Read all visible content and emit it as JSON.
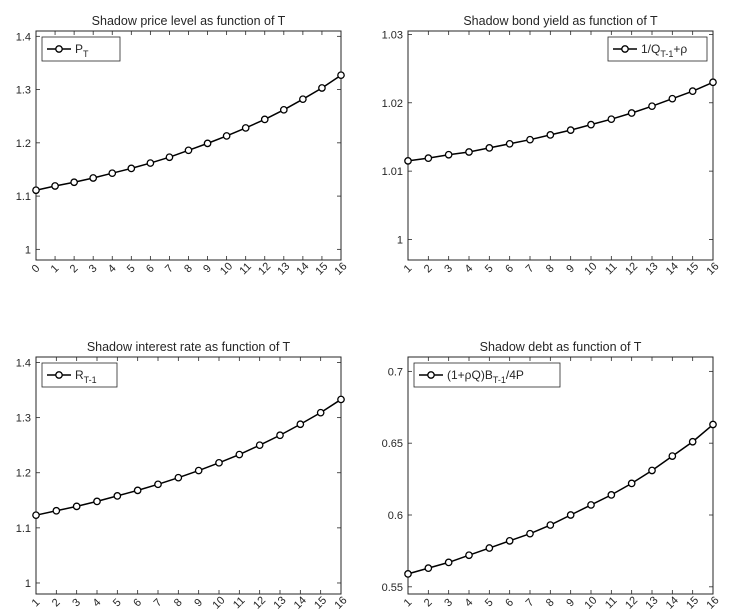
{
  "chart_data": [
    {
      "type": "line",
      "title": "Shadow price level as function of T",
      "x": [
        0,
        1,
        2,
        3,
        4,
        5,
        6,
        7,
        8,
        9,
        10,
        11,
        12,
        13,
        14,
        15,
        16
      ],
      "x_tick_labels": [
        "0",
        "1",
        "2",
        "3",
        "4",
        "5",
        "6",
        "7",
        "8",
        "9",
        "10",
        "11",
        "12",
        "13",
        "14",
        "15",
        "16"
      ],
      "xlim": [
        0,
        16
      ],
      "ylim": [
        0.98,
        1.41
      ],
      "yticks": [
        1,
        1.1,
        1.2,
        1.3,
        1.4
      ],
      "ytick_labels": [
        "1",
        "1.1",
        "1.2",
        "1.3",
        "1.4"
      ],
      "legend": {
        "main": "P",
        "sub": "T",
        "suffix": "",
        "position": "top-left"
      },
      "series": [
        {
          "values": [
            1.111,
            1.119,
            1.126,
            1.134,
            1.143,
            1.152,
            1.162,
            1.173,
            1.186,
            1.199,
            1.213,
            1.228,
            1.244,
            1.262,
            1.282,
            1.303,
            1.327
          ]
        }
      ],
      "color": "#000000"
    },
    {
      "type": "line",
      "title": "Shadow bond yield as function of T",
      "x": [
        1,
        2,
        3,
        4,
        5,
        6,
        7,
        8,
        9,
        10,
        11,
        12,
        13,
        14,
        15,
        16
      ],
      "x_tick_labels": [
        "1",
        "2",
        "3",
        "4",
        "5",
        "6",
        "7",
        "8",
        "9",
        "10",
        "11",
        "12",
        "13",
        "14",
        "15",
        "16"
      ],
      "xlim": [
        1,
        16
      ],
      "ylim": [
        0.997,
        1.0305
      ],
      "yticks": [
        1,
        1.01,
        1.02,
        1.03
      ],
      "ytick_labels": [
        "1",
        "1.01",
        "1.02",
        "1.03"
      ],
      "legend": {
        "main": "1/Q",
        "sub": "T-1",
        "suffix": "+ρ",
        "position": "top-right"
      },
      "series": [
        {
          "values": [
            1.0115,
            1.0119,
            1.0124,
            1.0128,
            1.0134,
            1.014,
            1.0146,
            1.0153,
            1.016,
            1.0168,
            1.0176,
            1.0185,
            1.0195,
            1.0206,
            1.0217,
            1.023
          ]
        }
      ],
      "color": "#000000"
    },
    {
      "type": "line",
      "title": "Shadow interest rate as function of T",
      "x": [
        1,
        2,
        3,
        4,
        5,
        6,
        7,
        8,
        9,
        10,
        11,
        12,
        13,
        14,
        15,
        16
      ],
      "x_tick_labels": [
        "1",
        "2",
        "3",
        "4",
        "5",
        "6",
        "7",
        "8",
        "9",
        "10",
        "11",
        "12",
        "13",
        "14",
        "15",
        "16"
      ],
      "xlim": [
        1,
        16
      ],
      "ylim": [
        0.98,
        1.41
      ],
      "yticks": [
        1,
        1.1,
        1.2,
        1.3,
        1.4
      ],
      "ytick_labels": [
        "1",
        "1.1",
        "1.2",
        "1.3",
        "1.4"
      ],
      "legend": {
        "main": "R",
        "sub": "T-1",
        "suffix": "",
        "position": "top-left"
      },
      "series": [
        {
          "values": [
            1.123,
            1.131,
            1.139,
            1.148,
            1.158,
            1.168,
            1.179,
            1.191,
            1.204,
            1.218,
            1.233,
            1.25,
            1.268,
            1.288,
            1.309,
            1.333
          ]
        }
      ],
      "color": "#000000"
    },
    {
      "type": "line",
      "title": "Shadow debt as function of T",
      "x": [
        1,
        2,
        3,
        4,
        5,
        6,
        7,
        8,
        9,
        10,
        11,
        12,
        13,
        14,
        15,
        16
      ],
      "x_tick_labels": [
        "1",
        "2",
        "3",
        "4",
        "5",
        "6",
        "7",
        "8",
        "9",
        "10",
        "11",
        "12",
        "13",
        "14",
        "15",
        "16"
      ],
      "xlim": [
        1,
        16
      ],
      "ylim": [
        0.545,
        0.71
      ],
      "yticks": [
        0.55,
        0.6,
        0.65,
        0.7
      ],
      "ytick_labels": [
        "0.55",
        "0.6",
        "0.65",
        "0.7"
      ],
      "legend": {
        "main": "(1+ρQ)B",
        "sub": "T-1",
        "suffix": "/4P",
        "position": "top-left"
      },
      "series": [
        {
          "values": [
            0.559,
            0.563,
            0.567,
            0.572,
            0.577,
            0.582,
            0.587,
            0.593,
            0.6,
            0.607,
            0.614,
            0.622,
            0.631,
            0.641,
            0.651,
            0.663
          ]
        }
      ],
      "color": "#000000"
    }
  ]
}
